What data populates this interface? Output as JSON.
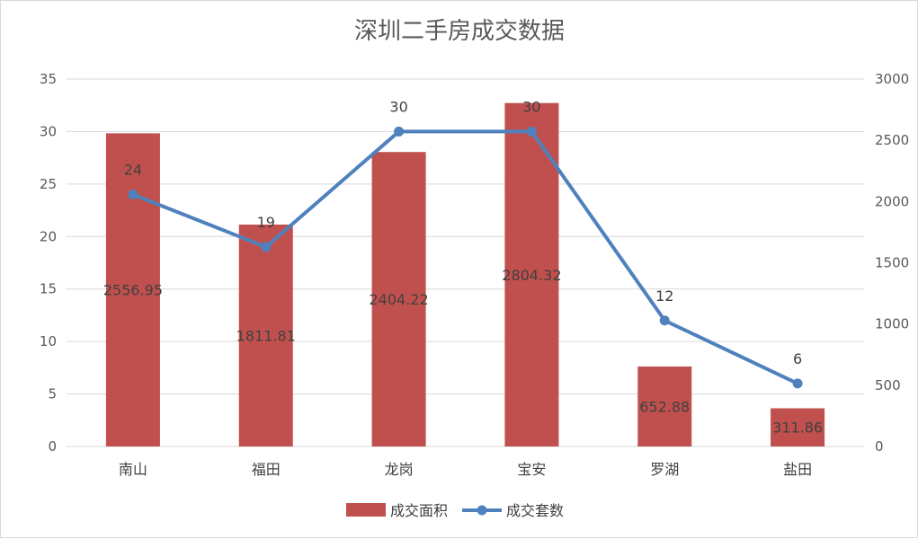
{
  "chart_data": {
    "type": "bar",
    "title": "深圳二手房成交数据",
    "categories": [
      "南山",
      "福田",
      "龙岗",
      "宝安",
      "罗湖",
      "盐田"
    ],
    "series": [
      {
        "name": "成交面积",
        "type": "bar",
        "axis": "right",
        "color": "#C0504D",
        "values": [
          2556.95,
          1811.81,
          2404.22,
          2804.32,
          652.88,
          311.86
        ]
      },
      {
        "name": "成交套数",
        "type": "line",
        "axis": "left",
        "color": "#4F81BD",
        "values": [
          24,
          19,
          30,
          30,
          12,
          6
        ]
      }
    ],
    "left_axis": {
      "min": 0,
      "max": 35,
      "ticks": [
        "0",
        "5",
        "10",
        "15",
        "20",
        "25",
        "30",
        "35"
      ]
    },
    "right_axis": {
      "min": 0,
      "max": 3000,
      "ticks": [
        "0",
        "500",
        "1000",
        "1500",
        "2000",
        "2500",
        "3000"
      ]
    },
    "grid": true,
    "legend_position": "bottom"
  }
}
